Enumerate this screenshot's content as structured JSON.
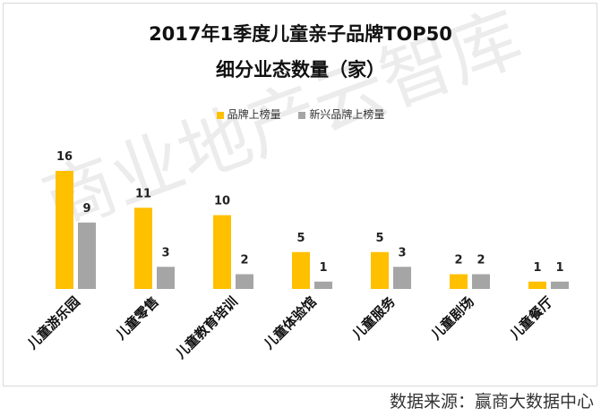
{
  "chart_data": {
    "type": "bar",
    "title": "2017年1季度儿童亲子品牌TOP50",
    "subtitle": "细分业态数量（家）",
    "categories": [
      "儿童游乐园",
      "儿童零售",
      "儿童教育培训",
      "儿童体验馆",
      "儿童服务",
      "儿童剧场",
      "儿童餐厅"
    ],
    "series": [
      {
        "name": "品牌上榜量",
        "values": [
          16,
          11,
          10,
          5,
          5,
          2,
          1
        ],
        "color": "#FFC000"
      },
      {
        "name": "新兴品牌上榜量",
        "values": [
          9,
          3,
          2,
          1,
          3,
          2,
          1
        ],
        "color": "#A5A5A5"
      }
    ],
    "xlabel": "",
    "ylabel": "",
    "ylim": [
      0,
      16
    ],
    "grid": false,
    "legend_position": "top"
  },
  "source": "数据来源：赢商大数据中心",
  "watermark": "商业地产云智库"
}
